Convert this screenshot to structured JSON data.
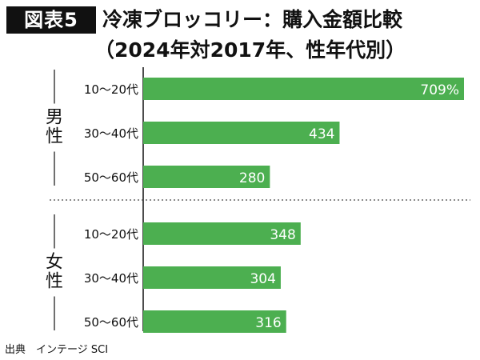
{
  "header": {
    "badge": "図表5",
    "title": "冷凍ブロッコリー：購入金額比較",
    "subtitle": "（2024年対2017年、性年代別）"
  },
  "source": "出典　インテージ SCI",
  "colors": {
    "bar": "#4caf50",
    "bar_label": "#ffffff",
    "text": "#111111"
  },
  "chart_data": {
    "type": "bar",
    "orientation": "horizontal",
    "unit_label_first": "%",
    "groups": [
      {
        "name": "男性",
        "categories": [
          "10～20代",
          "30～40代",
          "50～60代"
        ],
        "values": [
          709,
          434,
          280
        ],
        "labels": [
          "709%",
          "434",
          "280"
        ]
      },
      {
        "name": "女性",
        "categories": [
          "10～20代",
          "30～40代",
          "50～60代"
        ],
        "values": [
          348,
          304,
          316
        ],
        "labels": [
          "348",
          "304",
          "316"
        ]
      }
    ],
    "xlim": [
      0,
      709
    ],
    "grid": false,
    "group_separator": "dotted"
  }
}
